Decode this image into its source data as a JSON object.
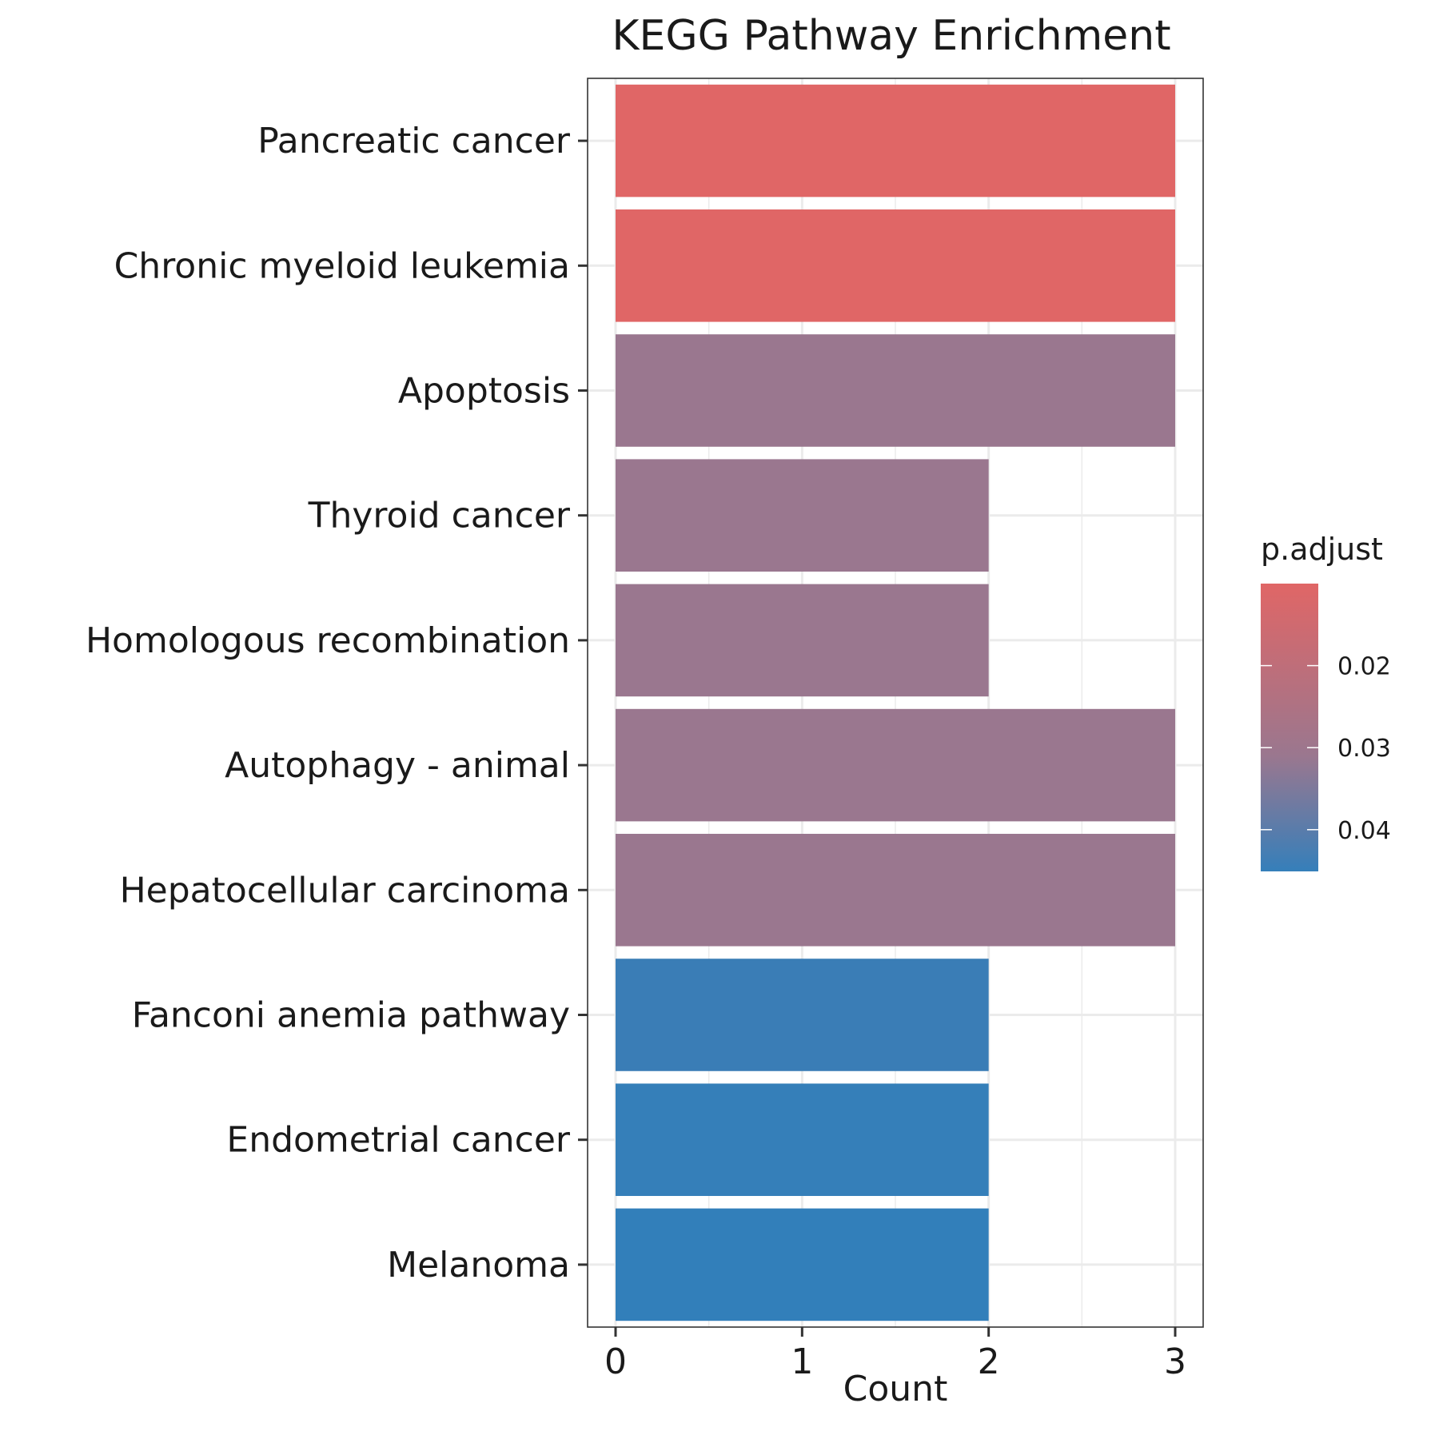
{
  "chart_data": {
    "type": "bar",
    "orientation": "horizontal",
    "title": "KEGG Pathway Enrichment",
    "xlabel": "Count",
    "ylabel": "",
    "xlim": [
      -0.15,
      3.15
    ],
    "x_ticks": [
      0,
      1,
      2,
      3
    ],
    "categories": [
      "Pancreatic cancer",
      "Chronic myeloid leukemia",
      "Apoptosis",
      "Thyroid cancer",
      "Homologous recombination",
      "Autophagy - animal",
      "Hepatocellular carcinoma",
      "Fanconi anemia pathway",
      "Endometrial cancer",
      "Melanoma"
    ],
    "values": [
      3,
      3,
      3,
      2,
      2,
      3,
      3,
      2,
      2,
      2
    ],
    "colors": [
      "#e06666",
      "#e06666",
      "#9a778f",
      "#9a778f",
      "#9a778f",
      "#9a778f",
      "#9a778f",
      "#3a7db6",
      "#357fb9",
      "#327fba"
    ],
    "legend": {
      "title": "p.adjust",
      "position": "right",
      "gradient_top": "#e06666",
      "gradient_mid": "#9a778f",
      "gradient_bottom": "#357fba",
      "ticks": [
        "0.02",
        "0.03",
        "0.04"
      ]
    }
  }
}
